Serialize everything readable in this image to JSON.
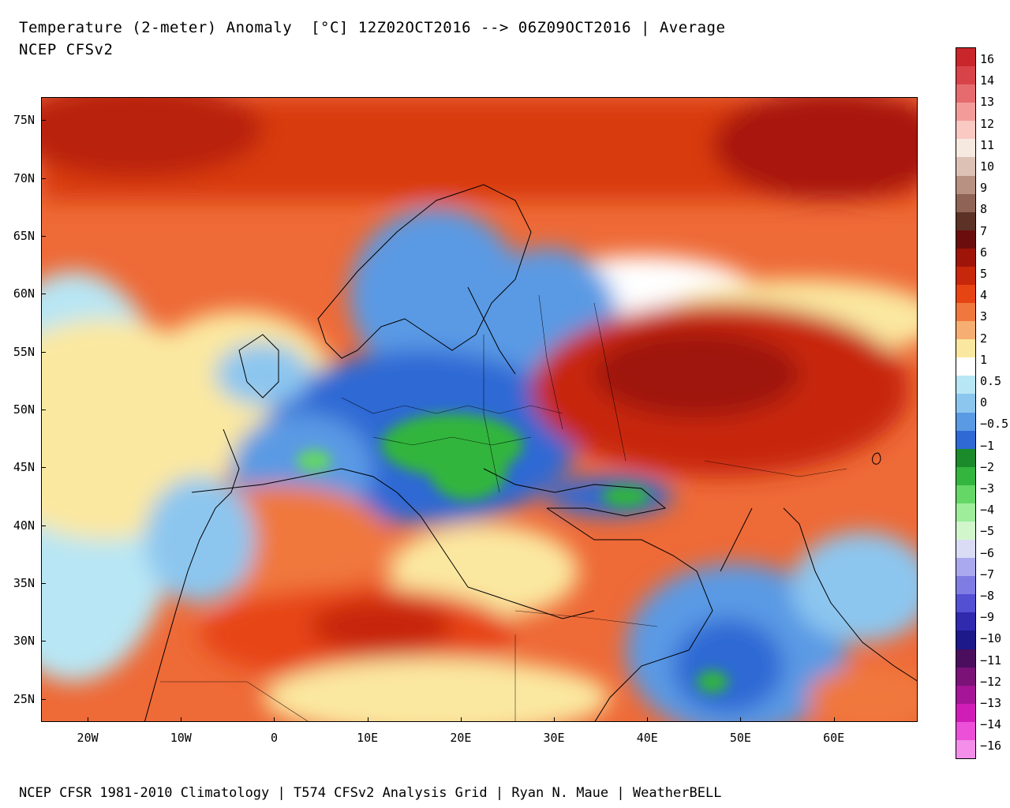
{
  "title": {
    "line1": "Temperature (2-meter) Anomaly  [°C] 12Z02OCT2016 --> 06Z09OCT2016 | Average",
    "line2": "NCEP CFSv2"
  },
  "footer": "NCEP CFSR 1981-2010 Climatology | T574 CFSv2 Analysis Grid | Ryan N. Maue | WeatherBELL",
  "map": {
    "lat_labels": [
      "75N",
      "70N",
      "65N",
      "60N",
      "55N",
      "50N",
      "45N",
      "40N",
      "35N",
      "30N",
      "25N"
    ],
    "lon_labels": [
      "20W",
      "10W",
      "0",
      "10E",
      "20E",
      "30E",
      "40E",
      "50E",
      "60E"
    ],
    "lat_range": [
      23,
      77
    ],
    "lon_range": [
      -25,
      69
    ],
    "description_regions": [
      {
        "name": "arctic-atlantic",
        "anomaly": "warm"
      },
      {
        "name": "central-europe",
        "anomaly": "cold"
      },
      {
        "name": "russia-kazakhstan",
        "anomaly": "warm"
      },
      {
        "name": "north-africa",
        "anomaly": "warm"
      },
      {
        "name": "arabia",
        "anomaly": "cold"
      }
    ]
  },
  "colorbar": {
    "labels": [
      "16",
      "14",
      "13",
      "12",
      "11",
      "10",
      "9",
      "8",
      "7",
      "6",
      "5",
      "4",
      "3",
      "2",
      "1",
      "0.5",
      "0",
      "-0.5",
      "-1",
      "-2",
      "-3",
      "-4",
      "-5",
      "-6",
      "-7",
      "-8",
      "-9",
      "-10",
      "-11",
      "-12",
      "-13",
      "-14",
      "-16"
    ],
    "colors": [
      "#c8262b",
      "#d8434a",
      "#e56b6e",
      "#f29c9a",
      "#f9c9c2",
      "#f6e9e0",
      "#dcc1b4",
      "#b89182",
      "#8f6456",
      "#5c3227",
      "#6b0d0d",
      "#9e1409",
      "#c7270a",
      "#e74414",
      "#f0783e",
      "#f7ae72",
      "#fbe8a0",
      "#ffffff",
      "#b8e6f4",
      "#8cc6ef",
      "#5a9ae4",
      "#2e69d4",
      "#1b8a2a",
      "#33b53e",
      "#64d766",
      "#9ded9b",
      "#d2f6cc",
      "#dadcf6",
      "#aaa9ee",
      "#7f7de4",
      "#5450d4",
      "#2f2aae",
      "#1d198a",
      "#4b0d5e",
      "#7a1278",
      "#a51596",
      "#d11db8",
      "#ec4fd8",
      "#f38ee9"
    ]
  }
}
